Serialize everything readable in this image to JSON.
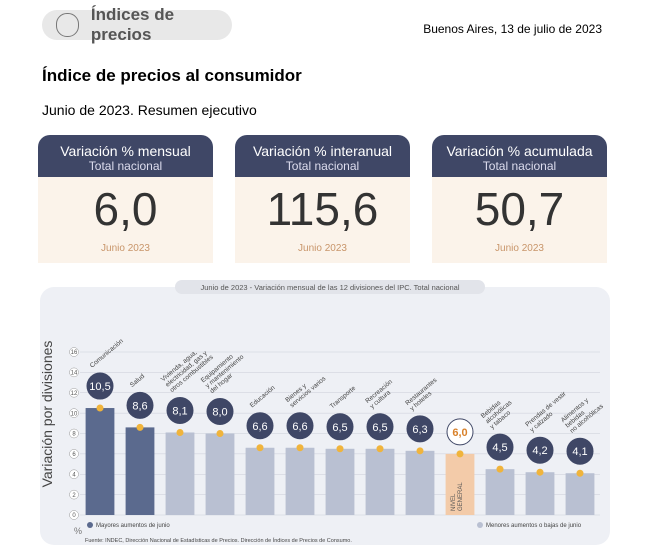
{
  "header": {
    "section": "Índices de precios",
    "date": "Buenos Aires, 13 de julio de 2023",
    "title": "Índice de precios al consumidor",
    "subtitle": "Junio de 2023. Resumen ejecutivo"
  },
  "cards": [
    {
      "title": "Variación % mensual",
      "scope": "Total nacional",
      "value": "6,0",
      "period": "Junio 2023"
    },
    {
      "title": "Variación % interanual",
      "scope": "Total nacional",
      "value": "115,6",
      "period": "Junio 2023"
    },
    {
      "title": "Variación % acumulada",
      "scope": "Total nacional",
      "value": "50,7",
      "period": "Junio 2023"
    }
  ],
  "chart_data": {
    "type": "bar",
    "title": "Junio de 2023 - Variación mensual de las 12 divisiones del IPC. Total nacional",
    "y_label": "Variación por divisiones",
    "y_unit": "%",
    "categories": [
      "Comunicación",
      "Salud",
      "Vivienda, agua,\nelectricidad, gas y\notros combustibles",
      "Equipamiento\ny mantenimiento\ndel hogar",
      "Educación",
      "Bienes y\nservicios varios",
      "Transporte",
      "Recreación\ny cultura",
      "Restaurantes\ny hoteles",
      "NIVEL\nGENERAL",
      "Bebidas\nalcohólicas\ny tabaco",
      "Prendas de vestir\ny calzado",
      "Alimentos y\nbebidas\nno alcohólicas"
    ],
    "values": [
      10.5,
      8.6,
      8.1,
      8.0,
      6.6,
      6.6,
      6.5,
      6.5,
      6.3,
      6.0,
      4.5,
      4.2,
      4.1
    ],
    "value_labels": [
      "10,5",
      "8,6",
      "8,1",
      "8,0",
      "6,6",
      "6,6",
      "6,5",
      "6,5",
      "6,3",
      "6,0",
      "4,5",
      "4,2",
      "4,1"
    ],
    "colors": [
      "#5b6a8e",
      "#5b6a8e",
      "#b9c0d2",
      "#b9c0d2",
      "#b9c0d2",
      "#b9c0d2",
      "#b9c0d2",
      "#b9c0d2",
      "#b9c0d2",
      "#f3cba9",
      "#b9c0d2",
      "#b9c0d2",
      "#b9c0d2"
    ],
    "ylim": [
      0,
      16
    ],
    "yticks": [
      0,
      2,
      4,
      6,
      8,
      10,
      12,
      14,
      16
    ],
    "grid": true,
    "legend": [
      {
        "name": "Mayores aumentos de junio",
        "color": "#5b6a8e"
      },
      {
        "name": "Menores aumentos o bajas de junio",
        "color": "#b9c0d2"
      }
    ],
    "source": "Fuente: INDEC, Dirección Nacional de Estadísticas de Precios. Dirección de Índices de Precios de Consumo."
  }
}
